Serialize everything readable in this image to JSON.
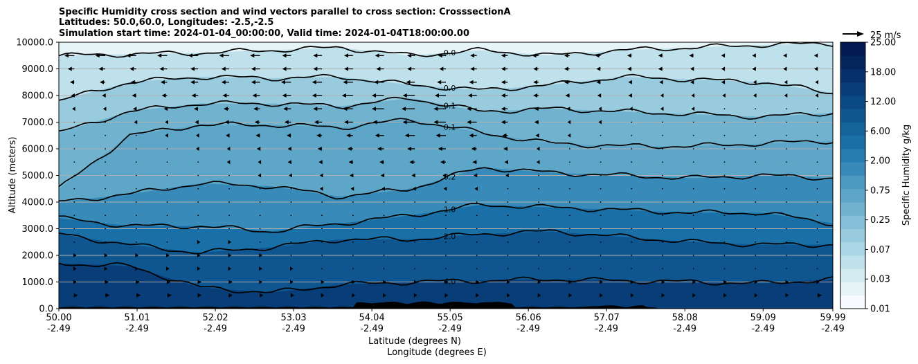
{
  "chart_data": {
    "type": "heatmap",
    "title_lines": [
      "Specific Humidity cross section and wind vectors parallel to cross section: CrosssectionA",
      "Latitudes: 50.0,60.0, Longitudes: -2.5,-2.5",
      "Simulation start time: 2024-01-04_00:00:00, Valid time: 2024-01-04T18:00:00.00"
    ],
    "xlabel": "Latitude (degrees N)",
    "xlabel2": "Longitude (degrees E)",
    "ylabel": "Altitude (meters)",
    "xlim": [
      50.0,
      59.99
    ],
    "ylim": [
      0,
      10000
    ],
    "x_ticks": [
      {
        "lat": "50.00",
        "lon": "-2.49",
        "value": 50.0
      },
      {
        "lat": "51.01",
        "lon": "-2.49",
        "value": 51.01
      },
      {
        "lat": "52.02",
        "lon": "-2.49",
        "value": 52.02
      },
      {
        "lat": "53.03",
        "lon": "-2.49",
        "value": 53.03
      },
      {
        "lat": "54.04",
        "lon": "-2.49",
        "value": 54.04
      },
      {
        "lat": "55.05",
        "lon": "-2.49",
        "value": 55.05
      },
      {
        "lat": "56.06",
        "lon": "-2.49",
        "value": 56.06
      },
      {
        "lat": "57.07",
        "lon": "-2.49",
        "value": 57.07
      },
      {
        "lat": "58.08",
        "lon": "-2.49",
        "value": 58.08
      },
      {
        "lat": "59.09",
        "lon": "-2.49",
        "value": 59.09
      },
      {
        "lat": "59.99",
        "lon": "-2.49",
        "value": 59.99
      }
    ],
    "y_ticks": [
      {
        "label": "0.0",
        "value": 0
      },
      {
        "label": "1000.0",
        "value": 1000
      },
      {
        "label": "2000.0",
        "value": 2000
      },
      {
        "label": "3000.0",
        "value": 3000
      },
      {
        "label": "4000.0",
        "value": 4000
      },
      {
        "label": "5000.0",
        "value": 5000
      },
      {
        "label": "6000.0",
        "value": 6000
      },
      {
        "label": "7000.0",
        "value": 7000
      },
      {
        "label": "8000.0",
        "value": 8000
      },
      {
        "label": "9000.0",
        "value": 9000
      },
      {
        "label": "10000.0",
        "value": 10000
      }
    ],
    "grid": "horizontal",
    "colorbar": {
      "label": "Specific Humidity g/kg",
      "tick_labels": [
        "0.01",
        "0.03",
        "0.07",
        "0.25",
        "0.75",
        "2.00",
        "6.00",
        "12.00",
        "18.00",
        "25.00"
      ],
      "levels": 20,
      "colors": [
        "#f7fbff",
        "#e6f3f7",
        "#d3ebf1",
        "#bfe1eb",
        "#acd6e5",
        "#99cbde",
        "#85bfd7",
        "#71b3cf",
        "#5ea6c8",
        "#4b99c0",
        "#388bb8",
        "#267eb0",
        "#1a70a6",
        "#14639b",
        "#0f5690",
        "#0b4984",
        "#083d78",
        "#06306b",
        "#04245e",
        "#031a50"
      ]
    },
    "contours": [
      {
        "label": "0.0",
        "level": 0.0,
        "heights": [
          9500,
          9550,
          9600,
          9700,
          9800,
          9500,
          9700,
          9500,
          9700,
          9800,
          9900,
          9950
        ]
      },
      {
        "label": "0.0",
        "level": 0.0,
        "heights": [
          7800,
          8500,
          8700,
          8650,
          8700,
          8400,
          8200,
          8400,
          8700,
          8600,
          8500,
          8100
        ]
      },
      {
        "label": "0.1",
        "level": 0.1,
        "heights": [
          6600,
          7400,
          7700,
          7700,
          7600,
          7900,
          7400,
          7500,
          7400,
          7300,
          7200,
          7350
        ]
      },
      {
        "label": "0.1",
        "level": 0.1,
        "heights": [
          4500,
          6500,
          6900,
          6900,
          6800,
          7100,
          6600,
          6200,
          6100,
          6100,
          6200,
          6300
        ]
      },
      {
        "label": "0.2",
        "level": 0.2,
        "heights": [
          4000,
          4300,
          4700,
          4600,
          4200,
          4500,
          5300,
          5100,
          5000,
          4900,
          5000,
          4900
        ]
      },
      {
        "label": "1.0",
        "level": 1.0,
        "heights": [
          3400,
          3100,
          3100,
          2900,
          3200,
          3500,
          3900,
          3800,
          3700,
          3600,
          3600,
          3200
        ]
      },
      {
        "label": "2.0",
        "level": 2.0,
        "heights": [
          2800,
          2400,
          2100,
          2300,
          2600,
          2600,
          2800,
          2900,
          2700,
          2500,
          2400,
          2400
        ]
      },
      {
        "label": "4.0",
        "level": 4.0,
        "heights": [
          1700,
          1600,
          800,
          600,
          900,
          1000,
          1050,
          1100,
          1050,
          1000,
          950,
          1100
        ]
      }
    ],
    "quiver_key": {
      "label": "25 m/s",
      "speed": 25
    },
    "wind_rows": [
      {
        "z": 9500,
        "u": [
          -9,
          -9,
          -9,
          -9,
          -9,
          -9,
          -9,
          -8,
          -8,
          -8,
          -8,
          -7,
          -7,
          -6,
          -6,
          -6,
          -5,
          -5,
          -4,
          -4,
          -4,
          -3,
          -3,
          -3,
          -3
        ]
      },
      {
        "z": 9000,
        "u": [
          -6,
          -6,
          -6,
          -7,
          -7,
          -7,
          -8,
          -8,
          -8,
          -8,
          -7,
          -7,
          -6,
          -6,
          -6,
          -5,
          -5,
          -4,
          -4,
          -4,
          -3,
          -3,
          -3,
          -3,
          -3
        ]
      },
      {
        "z": 8500,
        "u": [
          -4,
          -5,
          -5,
          -6,
          -7,
          -7,
          -8,
          -9,
          -9,
          -9,
          -9,
          -8,
          -8,
          -7,
          -6,
          -5,
          -5,
          -4,
          -3,
          -3,
          -3,
          -3,
          -2,
          -2,
          -2
        ]
      },
      {
        "z": 8000,
        "u": [
          -3,
          -3,
          -4,
          -5,
          -6,
          -6,
          -7,
          -8,
          -9,
          -10,
          -11,
          -11,
          -10,
          -8,
          -6,
          -5,
          -4,
          -3,
          -3,
          -2,
          -2,
          -2,
          -2,
          -2,
          -2
        ]
      },
      {
        "z": 7500,
        "u": [
          -2,
          -2,
          -3,
          -3,
          -4,
          -5,
          -6,
          -7,
          -8,
          -9,
          -11,
          -12,
          -11,
          -9,
          -6,
          -4,
          -3,
          -2,
          -2,
          -2,
          -2,
          -1,
          -1,
          -1,
          -1
        ]
      },
      {
        "z": 7000,
        "u": [
          -1,
          -1,
          -2,
          -2,
          -3,
          -4,
          -5,
          -6,
          -7,
          -8,
          -10,
          -11,
          -11,
          -9,
          -6,
          -4,
          -2,
          -2,
          -1,
          -1,
          -1,
          -1,
          -1,
          -1,
          -1
        ]
      },
      {
        "z": 6500,
        "u": [
          -1,
          -1,
          -1,
          -2,
          -2,
          -3,
          -4,
          -4,
          -5,
          -6,
          -8,
          -9,
          -9,
          -7,
          -5,
          -3,
          -2,
          -1,
          -1,
          -1,
          -1,
          -1,
          -1,
          -1,
          -1
        ]
      },
      {
        "z": 6000,
        "u": [
          -1,
          -1,
          -1,
          -1,
          -2,
          -2,
          -3,
          -3,
          -4,
          -5,
          -6,
          -7,
          -7,
          -5,
          -4,
          -2,
          -1,
          -1,
          -1,
          -1,
          -1,
          -1,
          -1,
          -1,
          -1
        ]
      },
      {
        "z": 5500,
        "u": [
          -1,
          -1,
          -1,
          -1,
          -1,
          -2,
          -2,
          -3,
          -3,
          -4,
          -4,
          -5,
          -5,
          -4,
          -3,
          -2,
          -1,
          -1,
          -1,
          -1,
          -1,
          -1,
          -1,
          -1,
          -1
        ]
      },
      {
        "z": 5000,
        "u": [
          -1,
          -1,
          -1,
          -1,
          -1,
          -1,
          -2,
          -2,
          -2,
          -3,
          -3,
          -3,
          -3,
          -3,
          -2,
          -1,
          -1,
          -1,
          -1,
          -1,
          -1,
          -1,
          -1,
          -1,
          -1
        ]
      },
      {
        "z": 4500,
        "u": [
          -1,
          -1,
          -1,
          -1,
          -1,
          -1,
          -1,
          -1,
          -2,
          -2,
          -2,
          -2,
          -2,
          -2,
          -1,
          -1,
          -1,
          -1,
          -1,
          -1,
          -1,
          -1,
          -1,
          -1,
          -1
        ]
      },
      {
        "z": 4000,
        "u": [
          -1,
          -1,
          -1,
          -1,
          -1,
          -1,
          -1,
          -1,
          -1,
          -1,
          -1,
          -1,
          -1,
          -1,
          -1,
          -1,
          -1,
          -1,
          -1,
          -1,
          -1,
          -1,
          -1,
          -1,
          -1
        ]
      },
      {
        "z": 3500,
        "u": [
          -1,
          -1,
          -1,
          -1,
          -1,
          -1,
          -1,
          -1,
          -1,
          -1,
          -1,
          -1,
          -1,
          -1,
          -1,
          -1,
          -1,
          -1,
          -1,
          -1,
          -1,
          -1,
          -1,
          -1,
          -1
        ]
      },
      {
        "z": 3000,
        "u": [
          1,
          1,
          1,
          1,
          1,
          1,
          -1,
          -1,
          -1,
          -1,
          -1,
          -1,
          -1,
          -1,
          -1,
          -1,
          -1,
          -1,
          -1,
          -1,
          -1,
          -1,
          -1,
          -1,
          -1
        ]
      },
      {
        "z": 2500,
        "u": [
          1,
          1,
          1,
          1,
          2,
          2,
          1,
          1,
          -1,
          -1,
          -1,
          -1,
          -1,
          -1,
          -1,
          -1,
          -1,
          -1,
          -1,
          -1,
          -1,
          -1,
          -1,
          -1,
          -1
        ]
      },
      {
        "z": 2000,
        "u": [
          2,
          2,
          2,
          2,
          2,
          2,
          2,
          1,
          1,
          1,
          1,
          1,
          1,
          1,
          1,
          1,
          1,
          1,
          1,
          1,
          1,
          1,
          1,
          1,
          1
        ]
      },
      {
        "z": 1500,
        "u": [
          2,
          2,
          2,
          2,
          2,
          2,
          2,
          2,
          1,
          1,
          1,
          1,
          1,
          1,
          1,
          1,
          1,
          1,
          1,
          1,
          1,
          1,
          1,
          1,
          1
        ]
      },
      {
        "z": 1000,
        "u": [
          2,
          3,
          3,
          3,
          3,
          3,
          2,
          2,
          2,
          2,
          2,
          2,
          2,
          2,
          2,
          2,
          2,
          2,
          2,
          2,
          2,
          2,
          2,
          2,
          2
        ]
      },
      {
        "z": 500,
        "u": [
          3,
          4,
          4,
          4,
          3,
          3,
          3,
          3,
          2,
          2,
          2,
          2,
          2,
          2,
          2,
          2,
          2,
          2,
          2,
          2,
          2,
          2,
          2,
          2,
          4
        ]
      }
    ]
  }
}
